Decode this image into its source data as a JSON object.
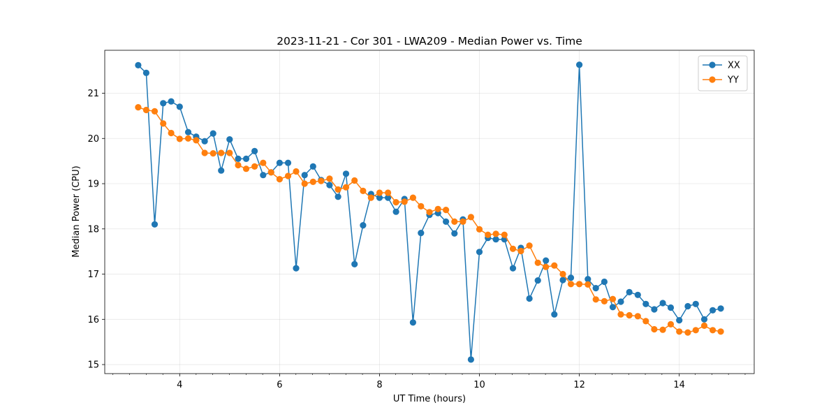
{
  "chart_data": {
    "type": "line",
    "title": "2023-11-21 - Cor 301 - LWA209 - Median Power vs. Time",
    "xlabel": "UT Time (hours)",
    "ylabel": "Median Power (CPU)",
    "xlim": [
      2.5,
      15.5
    ],
    "ylim": [
      14.8,
      21.95
    ],
    "xticks": [
      4,
      6,
      8,
      10,
      12,
      14
    ],
    "xtick_labels": [
      "4",
      "6",
      "8",
      "10",
      "12",
      "14"
    ],
    "x_minor_step": 0.333,
    "yticks": [
      15,
      16,
      17,
      18,
      19,
      20,
      21
    ],
    "ytick_labels": [
      "15",
      "16",
      "17",
      "18",
      "19",
      "20",
      "21"
    ],
    "grid": true,
    "legend_position": "top-right",
    "x": [
      3.17,
      3.33,
      3.5,
      3.67,
      3.83,
      4.0,
      4.17,
      4.33,
      4.5,
      4.67,
      4.83,
      5.0,
      5.17,
      5.33,
      5.5,
      5.67,
      5.83,
      6.0,
      6.17,
      6.33,
      6.5,
      6.67,
      6.83,
      7.0,
      7.17,
      7.33,
      7.5,
      7.67,
      7.83,
      8.0,
      8.17,
      8.33,
      8.5,
      8.67,
      8.83,
      9.0,
      9.17,
      9.33,
      9.5,
      9.67,
      9.83,
      10.0,
      10.17,
      10.33,
      10.5,
      10.67,
      10.83,
      11.0,
      11.17,
      11.33,
      11.5,
      11.67,
      11.83,
      12.0,
      12.17,
      12.33,
      12.5,
      12.67,
      12.83,
      13.0,
      13.17,
      13.33,
      13.5,
      13.67,
      13.83,
      14.0,
      14.17,
      14.33,
      14.5,
      14.67,
      14.83
    ],
    "series": [
      {
        "name": "XX",
        "color": "#1f77b4",
        "values": [
          21.62,
          21.45,
          18.1,
          20.78,
          20.82,
          20.7,
          20.14,
          20.04,
          19.94,
          20.11,
          19.29,
          19.98,
          19.55,
          19.55,
          19.72,
          19.19,
          19.25,
          19.46,
          19.46,
          17.13,
          19.19,
          19.38,
          19.08,
          18.97,
          18.71,
          19.22,
          17.22,
          18.08,
          18.77,
          18.69,
          18.69,
          18.38,
          18.66,
          15.93,
          17.91,
          18.31,
          18.35,
          18.16,
          17.9,
          18.21,
          15.11,
          17.49,
          17.8,
          17.77,
          17.77,
          17.13,
          17.58,
          16.46,
          16.86,
          17.3,
          16.11,
          16.87,
          16.92,
          21.63,
          16.89,
          16.69,
          16.83,
          16.27,
          16.39,
          16.6,
          16.54,
          16.34,
          16.22,
          16.36,
          16.26,
          15.98,
          16.29,
          16.34,
          16.0,
          16.2,
          16.24
        ]
      },
      {
        "name": "YY",
        "color": "#ff7f0e",
        "values": [
          20.69,
          20.63,
          20.6,
          20.33,
          20.12,
          19.99,
          20.0,
          19.96,
          19.68,
          19.67,
          19.68,
          19.68,
          19.41,
          19.33,
          19.38,
          19.46,
          19.25,
          19.1,
          19.17,
          19.27,
          19.0,
          19.04,
          19.06,
          19.11,
          18.87,
          18.92,
          19.07,
          18.84,
          18.69,
          18.8,
          18.8,
          18.59,
          18.6,
          18.69,
          18.5,
          18.37,
          18.44,
          18.42,
          18.16,
          18.16,
          18.26,
          17.99,
          17.87,
          17.89,
          17.87,
          17.56,
          17.51,
          17.63,
          17.25,
          17.16,
          17.19,
          17.0,
          16.78,
          16.78,
          16.77,
          16.44,
          16.4,
          16.45,
          16.11,
          16.09,
          16.07,
          15.96,
          15.78,
          15.77,
          15.89,
          15.73,
          15.71,
          15.76,
          15.86,
          15.76,
          15.73
        ]
      }
    ]
  }
}
